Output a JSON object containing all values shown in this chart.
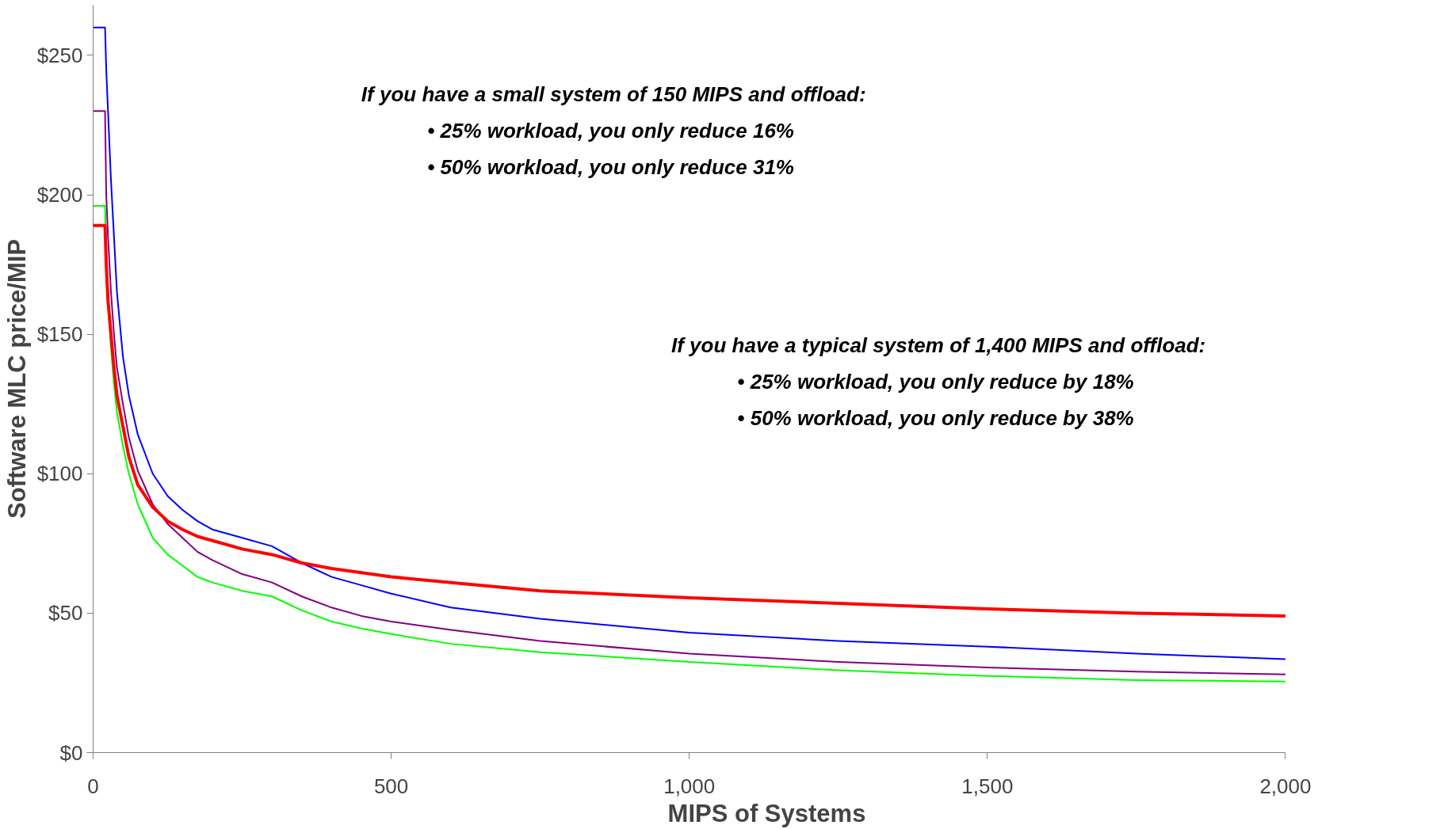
{
  "chart_data": {
    "type": "line",
    "xlabel": "MIPS of Systems",
    "ylabel": "Software MLC price/MIP",
    "x": [
      0,
      20,
      22,
      25,
      30,
      35,
      40,
      50,
      60,
      75,
      100,
      125,
      150,
      175,
      200,
      250,
      300,
      350,
      400,
      450,
      500,
      600,
      750,
      1000,
      1250,
      1500,
      1750,
      2000
    ],
    "series": [
      {
        "color": "#0000ff",
        "values": [
          260,
          260,
          245,
          230,
          205,
          185,
          165,
          142,
          128,
          114,
          100,
          92,
          87,
          83,
          80,
          77,
          74,
          68,
          63,
          60,
          57,
          52,
          48,
          43,
          40,
          38,
          35.5,
          33.5
        ]
      },
      {
        "color": "#800080",
        "values": [
          230,
          230,
          200,
          185,
          165,
          150,
          138,
          125,
          113,
          101,
          89,
          82,
          77,
          72,
          69,
          64,
          61,
          56,
          52,
          49,
          47,
          44,
          40,
          35.5,
          32.5,
          30.5,
          29,
          28
        ]
      },
      {
        "color": "#00ff00",
        "values": [
          196,
          196,
          175,
          160,
          145,
          132,
          122,
          110,
          100,
          89,
          77,
          71,
          67,
          63,
          61,
          58,
          56,
          51,
          47,
          44.5,
          42.5,
          39,
          36,
          32.5,
          29.5,
          27.5,
          26,
          25.5
        ]
      },
      {
        "color": "#ff0000",
        "values": [
          189,
          189,
          175,
          162,
          150,
          138,
          128,
          117,
          106,
          96,
          88,
          83,
          80,
          77.5,
          76,
          73,
          71,
          68,
          66,
          64.5,
          63,
          61,
          58,
          55.5,
          53.5,
          51.5,
          50,
          49
        ]
      }
    ],
    "xlim": [
      0,
      2000
    ],
    "ylim": [
      0,
      268
    ],
    "xticks": [
      0,
      500,
      {
        "value": 1000,
        "label": "1,000"
      },
      {
        "value": 1500,
        "label": "1,500"
      },
      {
        "value": 2000,
        "label": "2,000"
      }
    ],
    "yticks": [
      {
        "value": 0,
        "label": "$0"
      },
      {
        "value": 50,
        "label": "$50"
      },
      {
        "value": 100,
        "label": "$100"
      },
      {
        "value": 150,
        "label": "$150"
      },
      {
        "value": 200,
        "label": "$200"
      },
      {
        "value": 250,
        "label": "$250"
      }
    ],
    "grid": false,
    "annotations": [
      "If you have a small system of 150 MIPS and offload:\n•  25% workload, you only reduce 16%\n•  50% workload, you only reduce 31%",
      "If you have a typical system of 1,400 MIPS and offload:\n•  25% workload, you only reduce by 18%\n•  50% workload, you only reduce by 38%"
    ]
  }
}
